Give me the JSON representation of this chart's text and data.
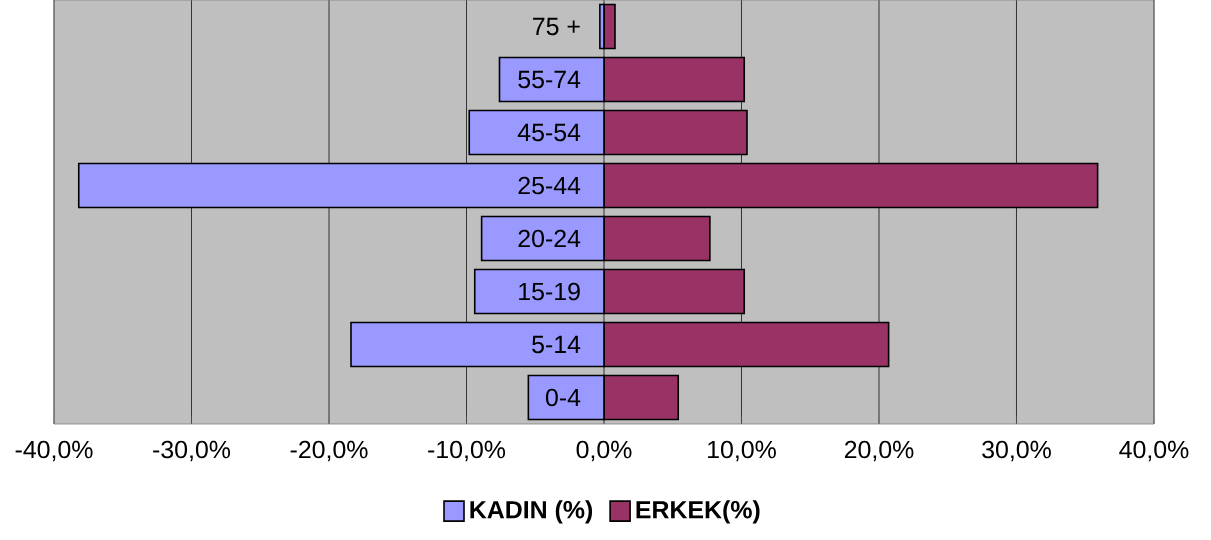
{
  "chart_data": {
    "type": "bar",
    "orientation": "horizontal",
    "categories": [
      "75 +",
      "55-74",
      "45-54",
      "25-44",
      "20-24",
      "15-19",
      "5-14",
      "0-4"
    ],
    "series": [
      {
        "name": "KADIN (%)",
        "color": "#9999ff",
        "values": [
          -0.3,
          -7.6,
          -9.8,
          -38.2,
          -8.9,
          -9.4,
          -18.4,
          -5.5
        ]
      },
      {
        "name": "ERKEK(%)",
        "color": "#993366",
        "values": [
          0.8,
          10.2,
          10.4,
          35.9,
          7.7,
          10.2,
          20.7,
          5.4
        ]
      }
    ],
    "xlim": [
      -40,
      40
    ],
    "xticks": [
      {
        "value": -40,
        "label": "-40,0%"
      },
      {
        "value": -30,
        "label": "-30,0%"
      },
      {
        "value": -20,
        "label": "-20,0%"
      },
      {
        "value": -10,
        "label": "-10,0%"
      },
      {
        "value": 0,
        "label": "0,0%"
      },
      {
        "value": 10,
        "label": "10,0%"
      },
      {
        "value": 20,
        "label": "20,0%"
      },
      {
        "value": 30,
        "label": "30,0%"
      },
      {
        "value": 40,
        "label": "40,0%"
      }
    ],
    "grid": "x",
    "legend": "bottom",
    "stacked": true
  }
}
